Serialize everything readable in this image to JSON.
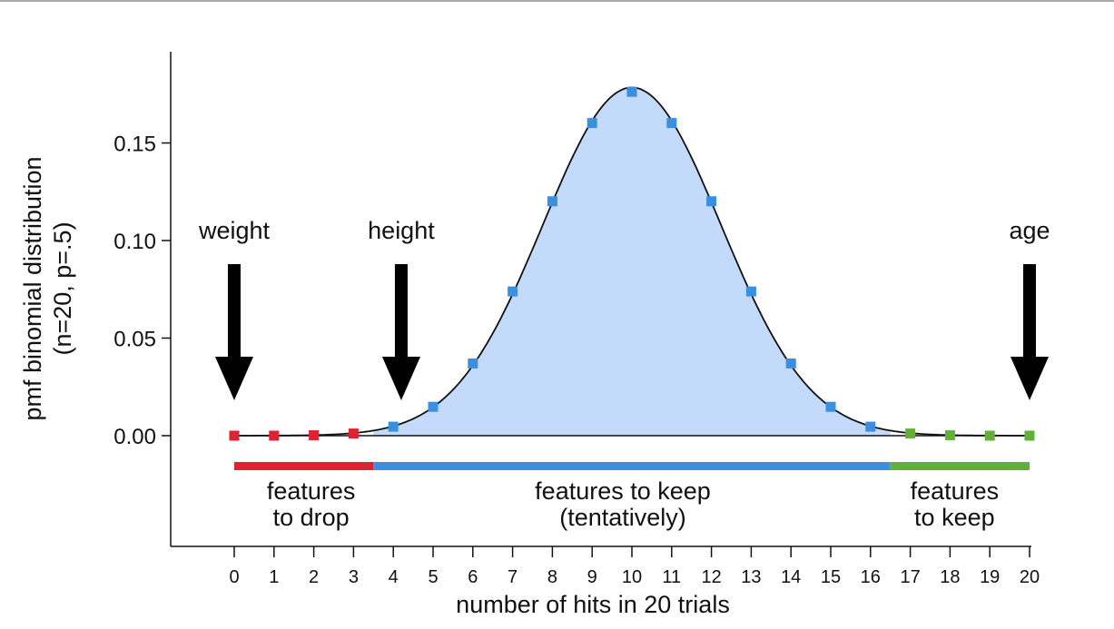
{
  "chart_data": {
    "type": "scatter",
    "xlabel": "number of hits in 20 trials",
    "ylabel_line1": "pmf binomial distribution",
    "ylabel_line2": "(n=20, p=.5)",
    "xlim": [
      0,
      20
    ],
    "ylim": [
      0.0,
      0.175
    ],
    "x_ticks": [
      0,
      1,
      2,
      3,
      4,
      5,
      6,
      7,
      8,
      9,
      10,
      11,
      12,
      13,
      14,
      15,
      16,
      17,
      18,
      19,
      20
    ],
    "y_ticks": [
      {
        "value": 0.0,
        "label": "0.00"
      },
      {
        "value": 0.05,
        "label": "0.05"
      },
      {
        "value": 0.1,
        "label": "0.10"
      },
      {
        "value": 0.15,
        "label": "0.15"
      }
    ],
    "points": [
      {
        "x": 0,
        "y": 0.0,
        "group": "drop"
      },
      {
        "x": 1,
        "y": 0.0,
        "group": "drop"
      },
      {
        "x": 2,
        "y": 0.0002,
        "group": "drop"
      },
      {
        "x": 3,
        "y": 0.0011,
        "group": "drop"
      },
      {
        "x": 4,
        "y": 0.0046,
        "group": "keep-tentative"
      },
      {
        "x": 5,
        "y": 0.0148,
        "group": "keep-tentative"
      },
      {
        "x": 6,
        "y": 0.037,
        "group": "keep-tentative"
      },
      {
        "x": 7,
        "y": 0.0739,
        "group": "keep-tentative"
      },
      {
        "x": 8,
        "y": 0.1201,
        "group": "keep-tentative"
      },
      {
        "x": 9,
        "y": 0.1602,
        "group": "keep-tentative"
      },
      {
        "x": 10,
        "y": 0.1762,
        "group": "keep-tentative"
      },
      {
        "x": 11,
        "y": 0.1602,
        "group": "keep-tentative"
      },
      {
        "x": 12,
        "y": 0.1201,
        "group": "keep-tentative"
      },
      {
        "x": 13,
        "y": 0.0739,
        "group": "keep-tentative"
      },
      {
        "x": 14,
        "y": 0.037,
        "group": "keep-tentative"
      },
      {
        "x": 15,
        "y": 0.0148,
        "group": "keep-tentative"
      },
      {
        "x": 16,
        "y": 0.0046,
        "group": "keep-tentative"
      },
      {
        "x": 17,
        "y": 0.0011,
        "group": "keep"
      },
      {
        "x": 18,
        "y": 0.0002,
        "group": "keep"
      },
      {
        "x": 19,
        "y": 0.0,
        "group": "keep"
      },
      {
        "x": 20,
        "y": 0.0,
        "group": "keep"
      }
    ],
    "shaded_region": [
      3.5,
      16.5
    ],
    "regions": [
      {
        "name": "drop",
        "from": 0,
        "to": 3.5,
        "color": "#dd2233",
        "label_lines": [
          "features",
          "to drop"
        ]
      },
      {
        "name": "keep-tentative",
        "from": 3.5,
        "to": 16.5,
        "color": "#3b8fe0",
        "label_lines": [
          "features to keep",
          "(tentatively)"
        ]
      },
      {
        "name": "keep",
        "from": 16.5,
        "to": 20,
        "color": "#62b036",
        "label_lines": [
          "features",
          "to keep"
        ]
      }
    ],
    "annotations": [
      {
        "text": "weight",
        "x": 0
      },
      {
        "text": "height",
        "x": 4.2
      },
      {
        "text": "age",
        "x": 20
      }
    ],
    "colors": {
      "fill": "#c4dafa",
      "curve": "#111111",
      "drop": "#dd2233",
      "keep_tentative": "#3b8fe0",
      "keep": "#62b036"
    }
  }
}
